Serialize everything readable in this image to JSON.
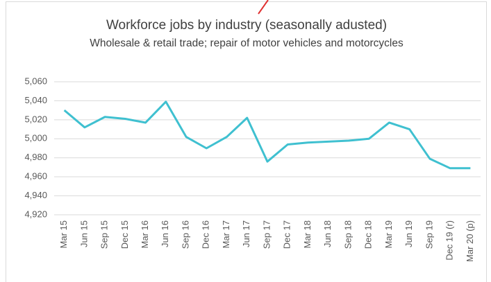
{
  "chart_data": {
    "type": "line",
    "title": "Workforce jobs by industry (seasonally adusted)",
    "subtitle": "Wholesale & retail trade; repair of motor vehicles and motorcycles",
    "categories": [
      "Mar 15",
      "Jun 15",
      "Sep 15",
      "Dec 15",
      "Mar 16",
      "Jun 16",
      "Sep 16",
      "Dec 16",
      "Mar 17",
      "Jun 17",
      "Sep 17",
      "Dec 17",
      "Mar 18",
      "Jun 18",
      "Sep 18",
      "Dec 18",
      "Mar 19",
      "Jun 19",
      "Sep 19",
      "Dec 19 (r)",
      "Mar 20 (p)"
    ],
    "values": [
      5030,
      5012,
      5023,
      5021,
      5017,
      5039,
      5002,
      4990,
      5002,
      5022,
      4976,
      4994,
      4996,
      4997,
      4998,
      5000,
      5017,
      5010,
      4979,
      4969,
      4969
    ],
    "color": "#3fc0d0",
    "ylim": [
      4920,
      5060
    ],
    "yticks": [
      {
        "value": 4920,
        "label": "4,920"
      },
      {
        "value": 4940,
        "label": "4,940"
      },
      {
        "value": 4960,
        "label": "4,960"
      },
      {
        "value": 4980,
        "label": "4,980"
      },
      {
        "value": 5000,
        "label": "5,000"
      },
      {
        "value": 5020,
        "label": "5,020"
      },
      {
        "value": 5040,
        "label": "5,040"
      },
      {
        "value": 5060,
        "label": "5,060"
      }
    ],
    "grid": true
  }
}
